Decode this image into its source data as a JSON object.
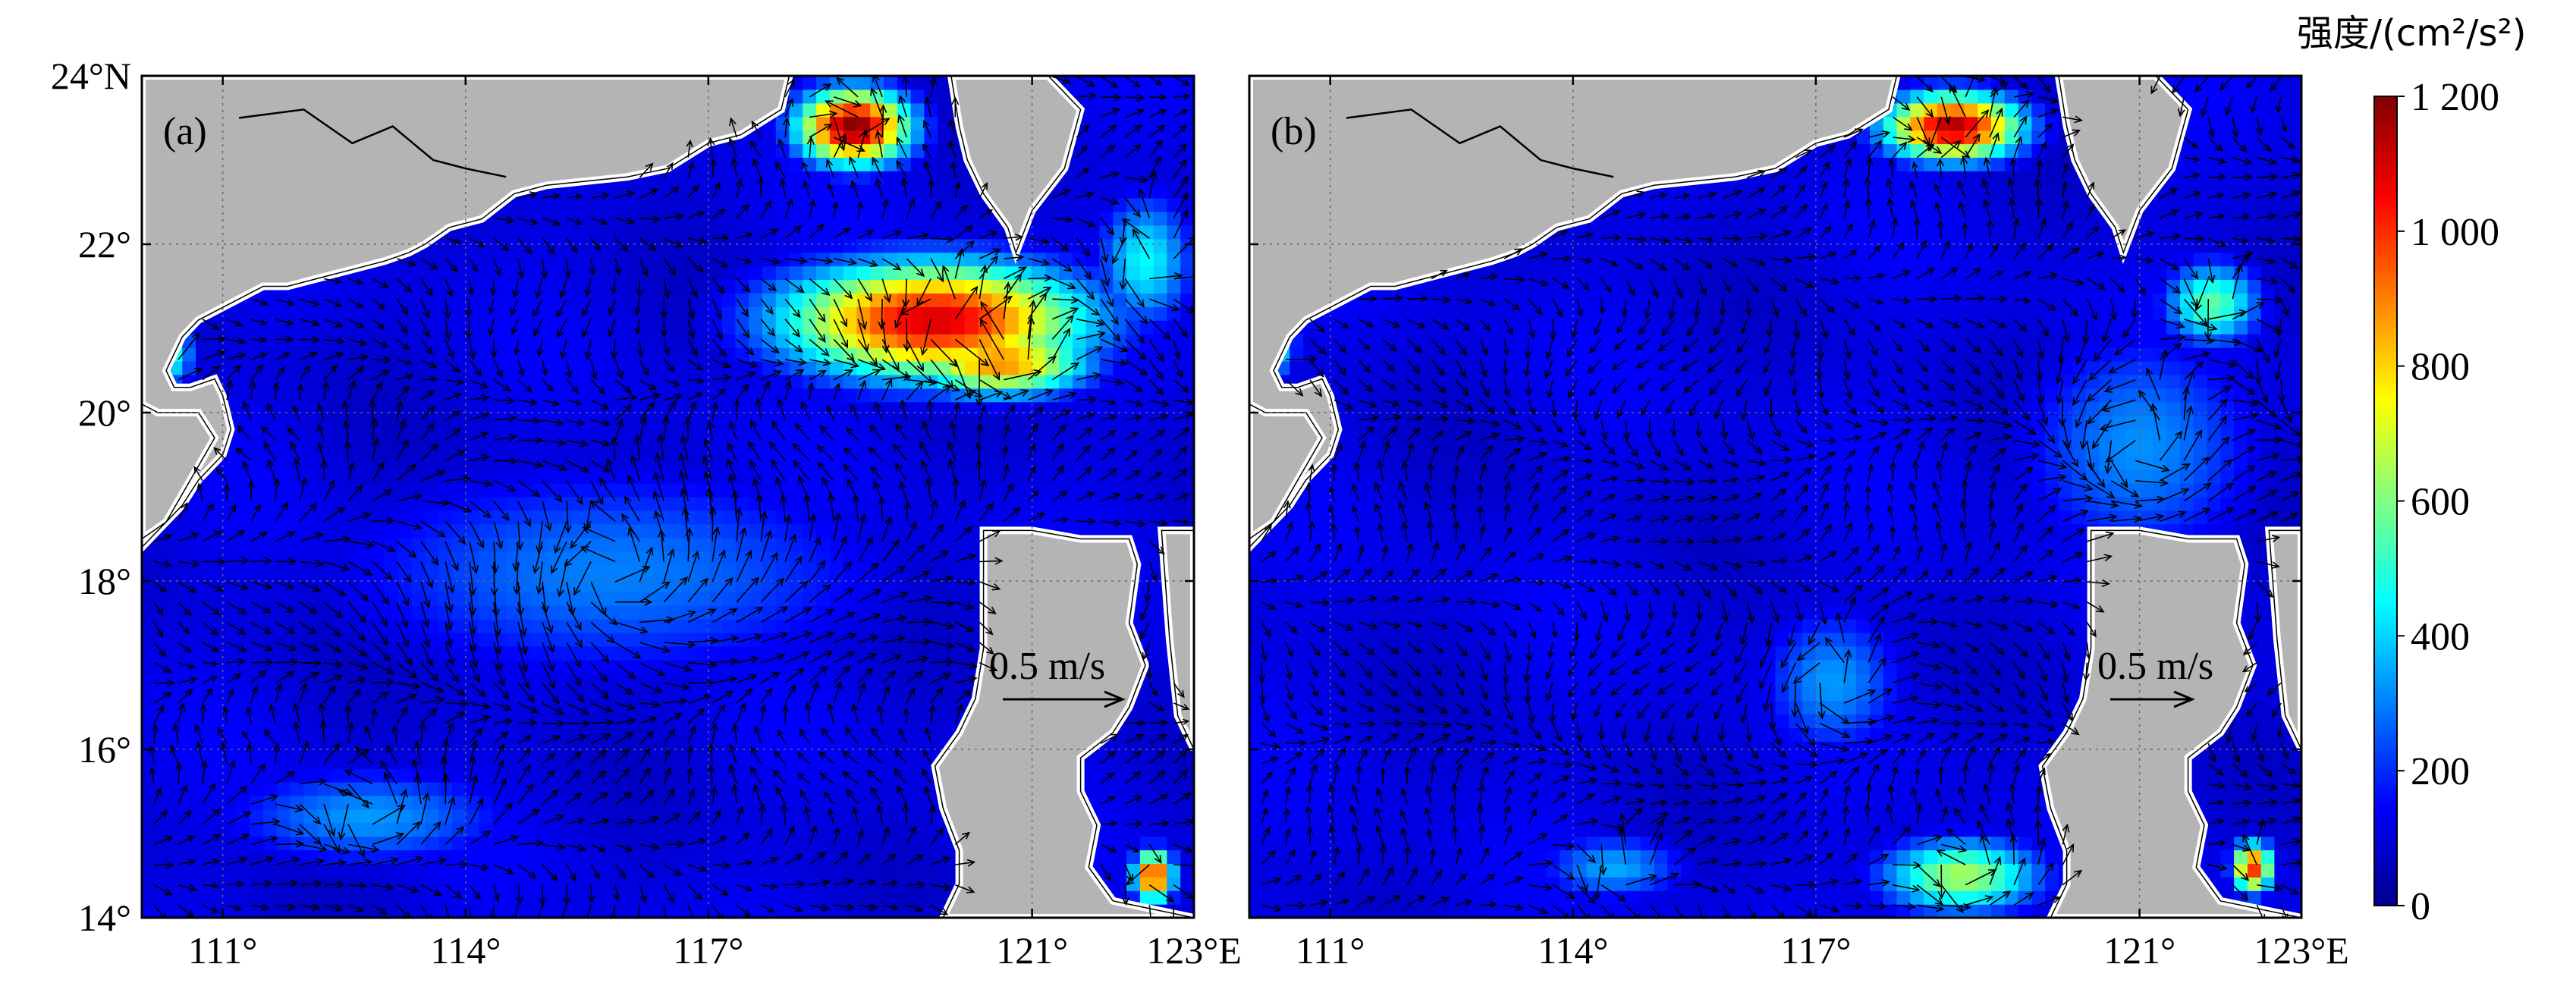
{
  "figure": {
    "panels": [
      {
        "label": "(a)",
        "reference_vector_label": "0.5 m/s",
        "hotspots": [
          {
            "lon": 119.8,
            "lat": 21.1,
            "value": 1100,
            "sx": 1.9,
            "sy": 0.7
          },
          {
            "lon": 118.8,
            "lat": 23.4,
            "value": 1200,
            "sx": 0.7,
            "sy": 0.45
          },
          {
            "lon": 120.6,
            "lat": 20.6,
            "value": 900,
            "sx": 1.1,
            "sy": 0.4
          },
          {
            "lon": 110.3,
            "lat": 20.7,
            "value": 520,
            "sx": 0.35,
            "sy": 0.4
          },
          {
            "lon": 122.4,
            "lat": 21.8,
            "value": 450,
            "sx": 0.6,
            "sy": 0.8
          },
          {
            "lon": 122.5,
            "lat": 14.5,
            "value": 1050,
            "sx": 0.25,
            "sy": 0.3
          },
          {
            "lon": 112.8,
            "lat": 15.2,
            "value": 330,
            "sx": 1.8,
            "sy": 0.6
          },
          {
            "lon": 115.8,
            "lat": 18.1,
            "value": 300,
            "sx": 3.5,
            "sy": 1.3
          }
        ]
      },
      {
        "label": "(b)",
        "reference_vector_label": "0.5 m/s",
        "hotspots": [
          {
            "lon": 118.7,
            "lat": 23.4,
            "value": 1150,
            "sx": 0.85,
            "sy": 0.4
          },
          {
            "lon": 121.9,
            "lat": 21.3,
            "value": 560,
            "sx": 0.6,
            "sy": 0.5
          },
          {
            "lon": 118.8,
            "lat": 14.5,
            "value": 650,
            "sx": 1.0,
            "sy": 0.45
          },
          {
            "lon": 122.4,
            "lat": 14.6,
            "value": 1000,
            "sx": 0.25,
            "sy": 0.3
          },
          {
            "lon": 110.3,
            "lat": 20.8,
            "value": 450,
            "sx": 0.3,
            "sy": 0.4
          },
          {
            "lon": 117.2,
            "lat": 16.8,
            "value": 330,
            "sx": 0.9,
            "sy": 0.9
          },
          {
            "lon": 114.5,
            "lat": 14.6,
            "value": 350,
            "sx": 0.9,
            "sy": 0.4
          },
          {
            "lon": 121.0,
            "lat": 19.6,
            "value": 320,
            "sx": 1.5,
            "sy": 1.4
          }
        ]
      }
    ],
    "x_axis": {
      "range": [
        110,
        123
      ],
      "tick_values": [
        111,
        114,
        117,
        121,
        123
      ],
      "tick_labels": [
        "111°",
        "114°",
        "117°",
        "121°",
        "123°E"
      ]
    },
    "y_axis": {
      "range": [
        14,
        24
      ],
      "tick_values": [
        14,
        16,
        18,
        20,
        22,
        24
      ],
      "tick_labels": [
        "14°",
        "16°",
        "18°",
        "20°",
        "22°",
        "24°N"
      ]
    },
    "colorbar": {
      "title": "强度/(cm²/s²)",
      "range": [
        0,
        1200
      ],
      "tick_values": [
        0,
        200,
        400,
        600,
        800,
        1000,
        1200
      ],
      "tick_labels": [
        "0",
        "200",
        "400",
        "600",
        "800",
        "1 000",
        "1 200"
      ],
      "colormap": [
        "#00008f",
        "#0000ff",
        "#0080ff",
        "#00ffff",
        "#80ff80",
        "#ffff00",
        "#ff8000",
        "#ff0000",
        "#800000"
      ]
    },
    "land_color": "#b4b4b4",
    "coast_color": "#000000",
    "arrow_color": "#000000"
  }
}
